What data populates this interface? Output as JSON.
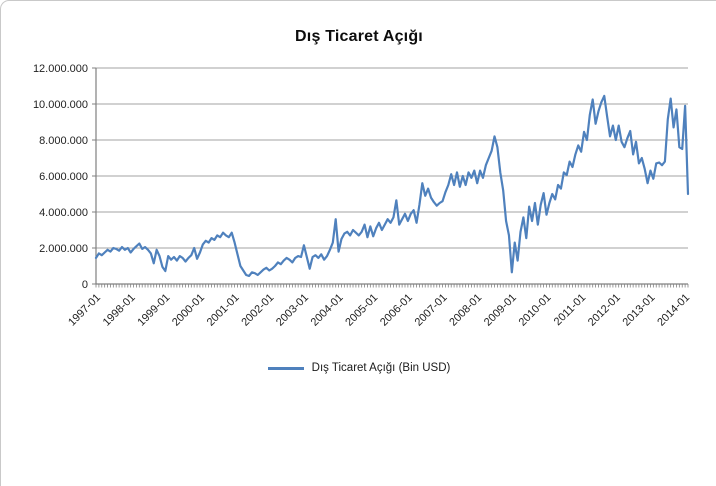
{
  "chart": {
    "title": "Dış Ticaret Açığı",
    "legend": {
      "label": "Dış Ticaret Açığı (Bin USD)"
    }
  },
  "colors": {
    "line": "#4F81BD",
    "gridline": "#a3a3a3",
    "axis": "#808080",
    "tick": "#808080",
    "text": "#1f1f1f",
    "border": "#c9c9c9"
  },
  "chart_data": {
    "type": "line",
    "title": "Dış Ticaret Açığı",
    "xlabel": "",
    "ylabel": "",
    "unit": "Bin USD",
    "x_start": "1997-01",
    "x_frequency": "monthly",
    "grid": true,
    "legend_position": "bottom",
    "ylim": [
      0,
      12000000
    ],
    "y_ticks": [
      0,
      2000000,
      4000000,
      6000000,
      8000000,
      10000000,
      12000000
    ],
    "y_tick_labels": [
      "0",
      "2.000.000",
      "4.000.000",
      "6.000.000",
      "8.000.000",
      "10.000.000",
      "12.000.000"
    ],
    "x_tick_labels": [
      "1997-01",
      "1998-01",
      "1999-01",
      "2000-01",
      "2001-01",
      "2002-01",
      "2003-01",
      "2004-01",
      "2005-01",
      "2006-01",
      "2007-01",
      "2008-01",
      "2009-01",
      "2010-01",
      "2011-01",
      "2012-01",
      "2013-01",
      "2014-01"
    ],
    "x_tick_interval_months": 12,
    "series": [
      {
        "name": "Dış Ticaret Açığı (Bin USD)",
        "color": "#4F81BD",
        "values": [
          1450000,
          1700000,
          1600000,
          1750000,
          1900000,
          1800000,
          2000000,
          1950000,
          1850000,
          2050000,
          1900000,
          2000000,
          1750000,
          1950000,
          2100000,
          2250000,
          1950000,
          2050000,
          1900000,
          1700000,
          1150000,
          1900000,
          1550000,
          950000,
          720000,
          1550000,
          1350000,
          1500000,
          1300000,
          1550000,
          1450000,
          1250000,
          1450000,
          1600000,
          2000000,
          1400000,
          1750000,
          2200000,
          2400000,
          2300000,
          2550000,
          2450000,
          2700000,
          2600000,
          2850000,
          2700000,
          2600000,
          2850000,
          2300000,
          1650000,
          1000000,
          750000,
          500000,
          450000,
          650000,
          600000,
          500000,
          650000,
          800000,
          900000,
          750000,
          850000,
          1000000,
          1200000,
          1100000,
          1300000,
          1450000,
          1350000,
          1200000,
          1450000,
          1550000,
          1500000,
          2150000,
          1500000,
          850000,
          1500000,
          1600000,
          1450000,
          1650000,
          1350000,
          1550000,
          1900000,
          2300000,
          3600000,
          1800000,
          2500000,
          2800000,
          2900000,
          2700000,
          3000000,
          2850000,
          2700000,
          2900000,
          3300000,
          2600000,
          3200000,
          2650000,
          3100000,
          3400000,
          3000000,
          3300000,
          3600000,
          3400000,
          3700000,
          4650000,
          3300000,
          3600000,
          3900000,
          3500000,
          3900000,
          4100000,
          3400000,
          4400000,
          5600000,
          4900000,
          5300000,
          4800000,
          4550000,
          4350000,
          4500000,
          4600000,
          5100000,
          5500000,
          6100000,
          5500000,
          6200000,
          5400000,
          6000000,
          5500000,
          6200000,
          5900000,
          6300000,
          5600000,
          6300000,
          5900000,
          6600000,
          7000000,
          7400000,
          8200000,
          7600000,
          6200000,
          5200000,
          3500000,
          2700000,
          650000,
          2300000,
          1300000,
          2900000,
          3700000,
          2550000,
          4300000,
          3500000,
          4500000,
          3300000,
          4400000,
          5050000,
          3850000,
          4500000,
          5000000,
          4700000,
          5500000,
          5300000,
          6200000,
          6050000,
          6800000,
          6500000,
          7200000,
          7700000,
          7350000,
          8450000,
          8000000,
          9400000,
          10250000,
          8900000,
          9600000,
          10100000,
          10450000,
          9300000,
          8200000,
          8800000,
          8000000,
          8800000,
          7900000,
          7600000,
          8100000,
          8500000,
          7200000,
          7900000,
          6700000,
          7000000,
          6400000,
          5600000,
          6300000,
          5850000,
          6700000,
          6750000,
          6600000,
          6800000,
          9150000,
          10300000,
          8700000,
          9700000,
          7600000,
          7500000,
          9900000,
          5000000
        ]
      }
    ]
  }
}
